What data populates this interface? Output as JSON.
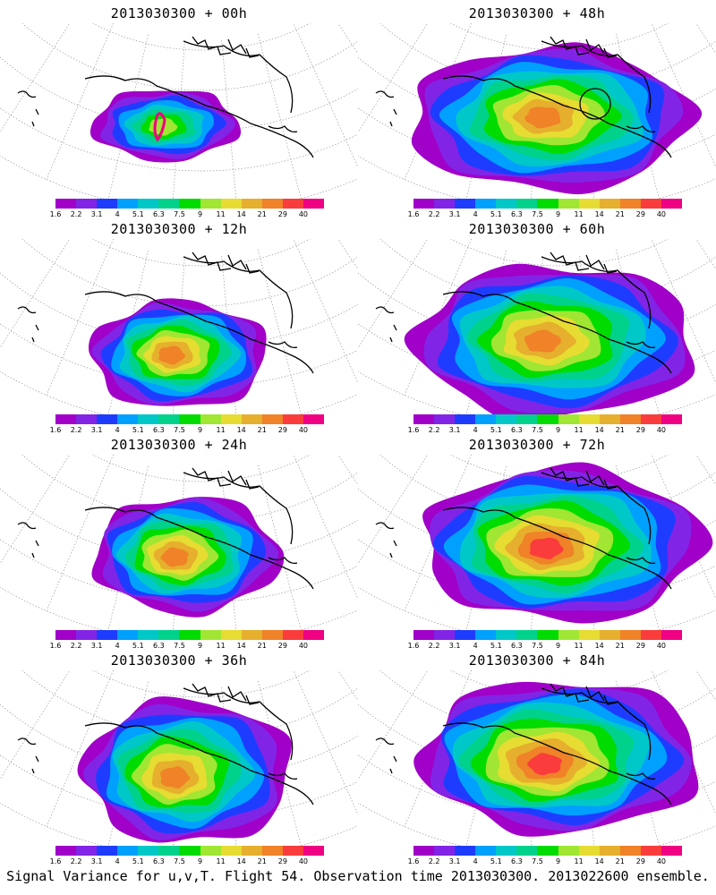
{
  "colorbar": {
    "labels": [
      "1.6",
      "2.2",
      "3.1",
      "4",
      "5.1",
      "6.3",
      "7.5",
      "9",
      "11",
      "14",
      "21",
      "29",
      "40"
    ],
    "colors": [
      "#a000c8",
      "#8224e6",
      "#1e3cff",
      "#00a0ff",
      "#00c8c8",
      "#00d28c",
      "#00dc00",
      "#a0e632",
      "#e6dc32",
      "#e6af2d",
      "#f08228",
      "#fa3c3c",
      "#f00082"
    ]
  },
  "panels": [
    {
      "title": "2013030300 + 00h",
      "lead_hours": 0
    },
    {
      "title": "2013030300 + 48h",
      "lead_hours": 48
    },
    {
      "title": "2013030300 + 12h",
      "lead_hours": 12
    },
    {
      "title": "2013030300 + 60h",
      "lead_hours": 60
    },
    {
      "title": "2013030300 + 24h",
      "lead_hours": 24
    },
    {
      "title": "2013030300 + 72h",
      "lead_hours": 72
    },
    {
      "title": "2013030300 + 36h",
      "lead_hours": 36
    },
    {
      "title": "2013030300 + 84h",
      "lead_hours": 84
    }
  ],
  "footer": "Signal Variance for u,v,T. Flight 54. Observation time 2013030300. 2013022600 ensemble."
}
